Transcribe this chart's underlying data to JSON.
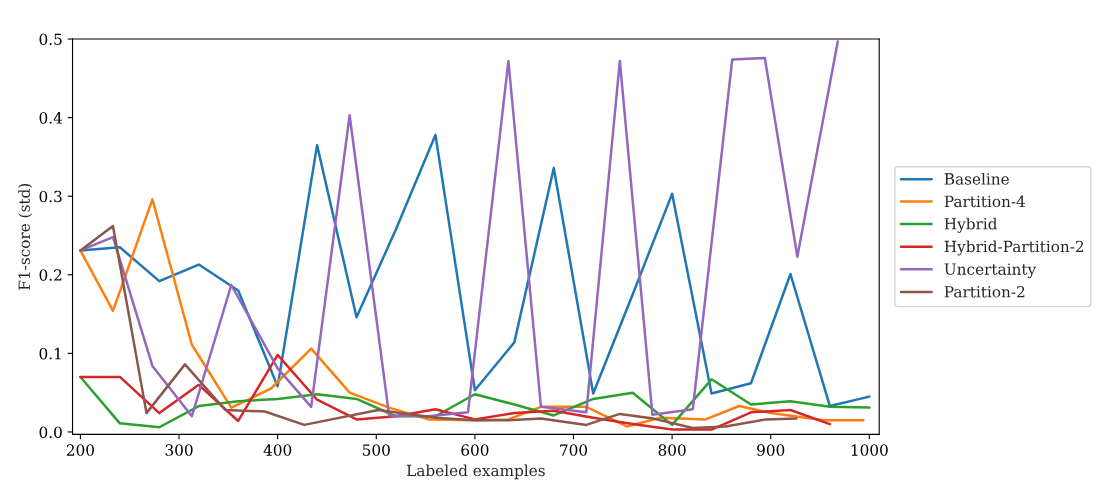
{
  "chart_data": {
    "type": "line",
    "xlabel": "Labeled examples",
    "ylabel": "F1-score (std)",
    "xlim": [
      192,
      1010
    ],
    "xticks": [
      200,
      300,
      400,
      500,
      600,
      700,
      800,
      900,
      1000
    ],
    "ylim": [
      -0.003,
      0.5
    ],
    "yticks": [
      {
        "value": 0,
        "label": "0.0"
      },
      0.1,
      0.2,
      0.3,
      0.4,
      0.5
    ],
    "grid": false,
    "legend": "right",
    "marker": "none",
    "line_style": "solid",
    "series": [
      {
        "name": "Baseline",
        "color": "#1f77b4",
        "x": [
          200,
          240,
          280,
          320,
          360,
          400,
          440,
          480,
          520,
          560,
          600,
          640,
          680,
          720,
          760,
          800,
          840,
          880,
          920,
          960,
          1000
        ],
        "values": [
          0.231,
          0.235,
          0.192,
          0.213,
          0.18,
          0.058,
          0.365,
          0.146,
          0.258,
          0.378,
          0.053,
          0.114,
          0.336,
          0.049,
          0.175,
          0.303,
          0.049,
          0.062,
          0.201,
          0.033,
          0.045
        ]
      },
      {
        "name": "Partition-4",
        "color": "#ff7f0e",
        "x": [
          200,
          233,
          273,
          313,
          353,
          393,
          434,
          473,
          513,
          553,
          600,
          634,
          667,
          713,
          754,
          788,
          834,
          868,
          900,
          954,
          994
        ],
        "values": [
          0.231,
          0.154,
          0.296,
          0.111,
          0.031,
          0.055,
          0.106,
          0.05,
          0.031,
          0.016,
          0.015,
          0.016,
          0.032,
          0.032,
          0.007,
          0.018,
          0.016,
          0.033,
          0.024,
          0.015,
          0.015
        ]
      },
      {
        "name": "Hybrid",
        "color": "#2ca02c",
        "x": [
          200,
          240,
          280,
          320,
          360,
          400,
          440,
          480,
          520,
          560,
          600,
          640,
          680,
          720,
          760,
          800,
          840,
          880,
          920,
          960,
          1000
        ],
        "values": [
          0.07,
          0.011,
          0.006,
          0.033,
          0.039,
          0.042,
          0.048,
          0.042,
          0.02,
          0.02,
          0.048,
          0.035,
          0.021,
          0.042,
          0.05,
          0.009,
          0.067,
          0.035,
          0.039,
          0.032,
          0.031
        ]
      },
      {
        "name": "Hybrid-Partition-2",
        "color": "#d62728",
        "x": [
          200,
          240,
          280,
          320,
          360,
          400,
          440,
          480,
          520,
          560,
          600,
          640,
          680,
          720,
          760,
          800,
          840,
          880,
          920,
          960
        ],
        "values": [
          0.07,
          0.07,
          0.024,
          0.06,
          0.014,
          0.098,
          0.041,
          0.016,
          0.02,
          0.029,
          0.016,
          0.024,
          0.027,
          0.018,
          0.01,
          0.003,
          0.003,
          0.025,
          0.028,
          0.01
        ]
      },
      {
        "name": "Uncertainty",
        "color": "#9467bd",
        "x": [
          200,
          233,
          273,
          313,
          353,
          400,
          434,
          473,
          513,
          553,
          593,
          634,
          667,
          713,
          747,
          780,
          821,
          861,
          894,
          927,
          968
        ],
        "values": [
          0.231,
          0.248,
          0.084,
          0.02,
          0.187,
          0.081,
          0.032,
          0.403,
          0.021,
          0.02,
          0.025,
          0.472,
          0.032,
          0.025,
          0.472,
          0.022,
          0.029,
          0.474,
          0.476,
          0.223,
          0.497
        ]
      },
      {
        "name": "Partition-2",
        "color": "#8c564b",
        "x": [
          200,
          233,
          267,
          306,
          347,
          387,
          427,
          502,
          560,
          600,
          634,
          667,
          713,
          747,
          781,
          821,
          854,
          895,
          926
        ],
        "values": [
          0.231,
          0.262,
          0.024,
          0.086,
          0.028,
          0.026,
          0.009,
          0.028,
          0.018,
          0.015,
          0.015,
          0.017,
          0.009,
          0.023,
          0.017,
          0.005,
          0.007,
          0.016,
          0.017
        ]
      }
    ]
  }
}
